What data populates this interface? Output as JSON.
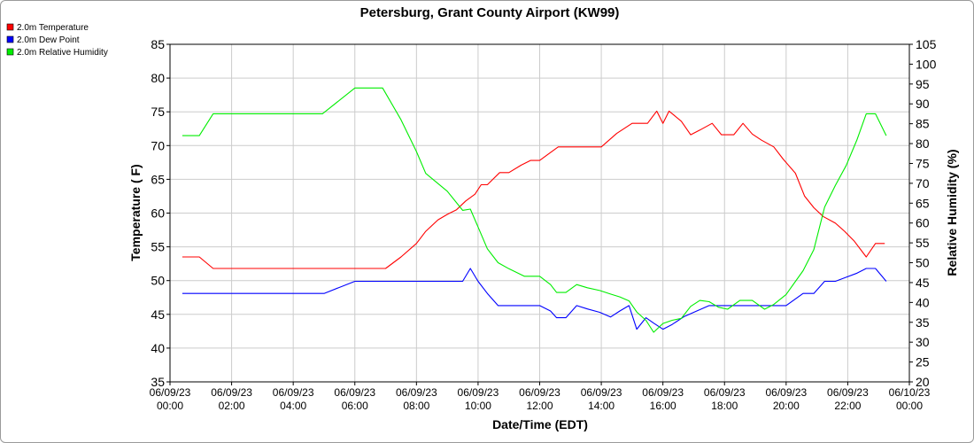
{
  "chart_data": {
    "type": "line",
    "title": "Petersburg, Grant County Airport (KW99)",
    "xlabel": "Date/Time (EDT)",
    "ylabel_left": "Temperature ( F)",
    "ylabel_right": "Relative Humidity (%)",
    "y_left_range": [
      35,
      85
    ],
    "y_left_ticks": [
      "35",
      "40",
      "45",
      "50",
      "55",
      "60",
      "65",
      "70",
      "75",
      "80",
      "85"
    ],
    "y_right_range": [
      20,
      105
    ],
    "y_right_ticks": [
      "20",
      "25",
      "30",
      "35",
      "40",
      "45",
      "50",
      "55",
      "60",
      "65",
      "70",
      "75",
      "80",
      "85",
      "90",
      "95",
      "100",
      "105"
    ],
    "x_range_hours": [
      0,
      24
    ],
    "x_ticks": [
      {
        "date": "06/09/23",
        "time": "00:00"
      },
      {
        "date": "06/09/23",
        "time": "02:00"
      },
      {
        "date": "06/09/23",
        "time": "04:00"
      },
      {
        "date": "06/09/23",
        "time": "06:00"
      },
      {
        "date": "06/09/23",
        "time": "08:00"
      },
      {
        "date": "06/09/23",
        "time": "10:00"
      },
      {
        "date": "06/09/23",
        "time": "12:00"
      },
      {
        "date": "06/09/23",
        "time": "14:00"
      },
      {
        "date": "06/09/23",
        "time": "16:00"
      },
      {
        "date": "06/09/23",
        "time": "18:00"
      },
      {
        "date": "06/09/23",
        "time": "20:00"
      },
      {
        "date": "06/09/23",
        "time": "22:00"
      },
      {
        "date": "06/10/23",
        "time": "00:00"
      }
    ],
    "grid": true,
    "legend_position": "top-left",
    "series": [
      {
        "name": "2.0m Temperature",
        "axis": "left",
        "color": "#ff0000",
        "x": [
          0.4,
          0.95,
          1.4,
          2,
          3,
          4,
          5,
          6,
          7,
          7.5,
          8,
          8.3,
          8.7,
          9,
          9.3,
          9.6,
          9.9,
          10.1,
          10.3,
          10.7,
          11,
          11.4,
          11.7,
          12,
          12.3,
          12.6,
          13,
          13.5,
          14,
          14.5,
          15,
          15.2,
          15.5,
          15.8,
          16,
          16.2,
          16.6,
          16.9,
          17.2,
          17.6,
          17.9,
          18.3,
          18.6,
          18.9,
          19.2,
          19.6,
          19.9,
          20.3,
          20.6,
          20.9,
          21.2,
          21.6,
          21.9,
          22.2,
          22.6,
          22.9,
          23.2
        ],
        "y": [
          53.5,
          53.5,
          51.8,
          51.8,
          51.8,
          51.8,
          51.8,
          51.8,
          51.8,
          53.5,
          55.5,
          57.3,
          59,
          59.8,
          60.5,
          61.8,
          62.8,
          64.2,
          64.2,
          66,
          66,
          67.1,
          67.8,
          67.8,
          68.8,
          69.8,
          69.8,
          69.8,
          69.8,
          71.8,
          73.3,
          73.3,
          73.3,
          75.1,
          73.3,
          75.1,
          73.6,
          71.6,
          72.3,
          73.3,
          71.6,
          71.6,
          73.3,
          71.7,
          70.8,
          69.8,
          68,
          65.9,
          62.5,
          60.8,
          59.5,
          58.5,
          57.3,
          55.9,
          53.5,
          55.5,
          55.5
        ]
      },
      {
        "name": "2.0m Dew Point",
        "axis": "left",
        "color": "#0000ff",
        "x": [
          0.4,
          1,
          2,
          3,
          4,
          5,
          6,
          7,
          8,
          9,
          9.5,
          9.75,
          10,
          10.3,
          10.65,
          11,
          11.5,
          12,
          12.35,
          12.55,
          12.85,
          13.2,
          13.55,
          13.95,
          14.3,
          14.6,
          14.9,
          15.15,
          15.45,
          15.7,
          16,
          16.3,
          16.7,
          17,
          17.5,
          18,
          18.5,
          19,
          19.5,
          20,
          20.55,
          20.9,
          21.25,
          21.6,
          21.95,
          22.3,
          22.6,
          22.9,
          23.25
        ],
        "y": [
          48.1,
          48.1,
          48.1,
          48.1,
          48.1,
          48.1,
          49.9,
          49.9,
          49.9,
          49.9,
          49.9,
          51.8,
          49.9,
          48.1,
          46.3,
          46.3,
          46.3,
          46.3,
          45.5,
          44.5,
          44.5,
          46.3,
          45.8,
          45.3,
          44.6,
          45.5,
          46.3,
          42.8,
          44.5,
          43.7,
          42.8,
          43.5,
          44.7,
          45.3,
          46.3,
          46.3,
          46.3,
          46.3,
          46.3,
          46.3,
          48.1,
          48.1,
          49.9,
          49.9,
          50.5,
          51.1,
          51.8,
          51.8,
          49.9
        ]
      },
      {
        "name": "2.0m Relative Humidity",
        "axis": "right",
        "color": "#00ee00",
        "x": [
          0.4,
          0.95,
          1.4,
          2,
          3,
          4,
          4.95,
          6,
          6.9,
          7.5,
          8,
          8.3,
          9,
          9.5,
          9.75,
          10,
          10.3,
          10.65,
          11,
          11.5,
          12,
          12.35,
          12.55,
          12.85,
          13.2,
          13.55,
          13.95,
          14.3,
          14.6,
          14.9,
          15.15,
          15.45,
          15.7,
          16,
          16.3,
          16.6,
          16.9,
          17.2,
          17.5,
          17.8,
          18.1,
          18.5,
          18.9,
          19.3,
          19.6,
          20,
          20.55,
          20.9,
          21.25,
          21.6,
          21.95,
          22.3,
          22.6,
          22.9,
          23.25
        ],
        "y": [
          82,
          82,
          87.5,
          87.5,
          87.5,
          87.5,
          87.5,
          94,
          94,
          86,
          78,
          72.5,
          68,
          63.2,
          63.5,
          59,
          53.5,
          50,
          48.5,
          46.6,
          46.6,
          44.5,
          42.5,
          42.5,
          44.5,
          43.7,
          43,
          42.1,
          41.4,
          40.4,
          37.6,
          35.5,
          32.5,
          34.7,
          35.5,
          36,
          39,
          40.5,
          40.2,
          38.8,
          38.3,
          40.5,
          40.5,
          38.3,
          39.5,
          42,
          48,
          53.3,
          64,
          69.5,
          74.5,
          81,
          87.5,
          87.5,
          82
        ]
      }
    ]
  }
}
